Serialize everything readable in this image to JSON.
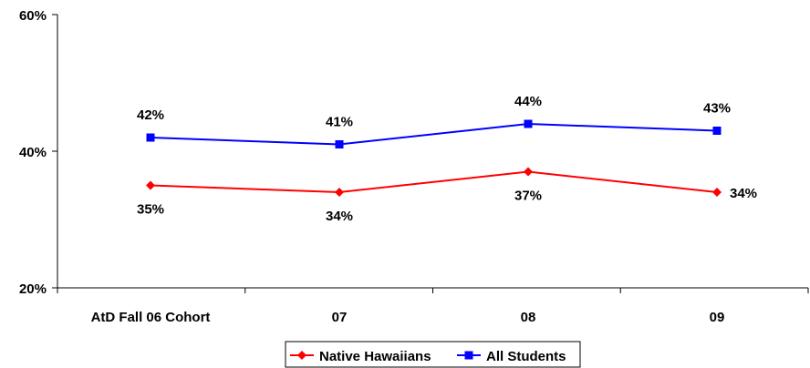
{
  "chart_data": {
    "type": "line",
    "categories": [
      "AtD Fall 06 Cohort",
      "07",
      "08",
      "09"
    ],
    "series": [
      {
        "name": "Native Hawaiians",
        "values": [
          35,
          34,
          37,
          34
        ],
        "labels": [
          "35%",
          "34%",
          "37%",
          "34%"
        ],
        "color": "#ff0000",
        "marker": "diamond"
      },
      {
        "name": "All Students",
        "values": [
          42,
          41,
          44,
          43
        ],
        "labels": [
          "42%",
          "41%",
          "44%",
          "43%"
        ],
        "color": "#0000ff",
        "marker": "square"
      }
    ],
    "ylim": [
      20,
      60
    ],
    "yticks": [
      20,
      40,
      60
    ],
    "ytick_labels": [
      "20%",
      "40%",
      "60%"
    ],
    "grid": false,
    "legend": "bottom-center"
  }
}
